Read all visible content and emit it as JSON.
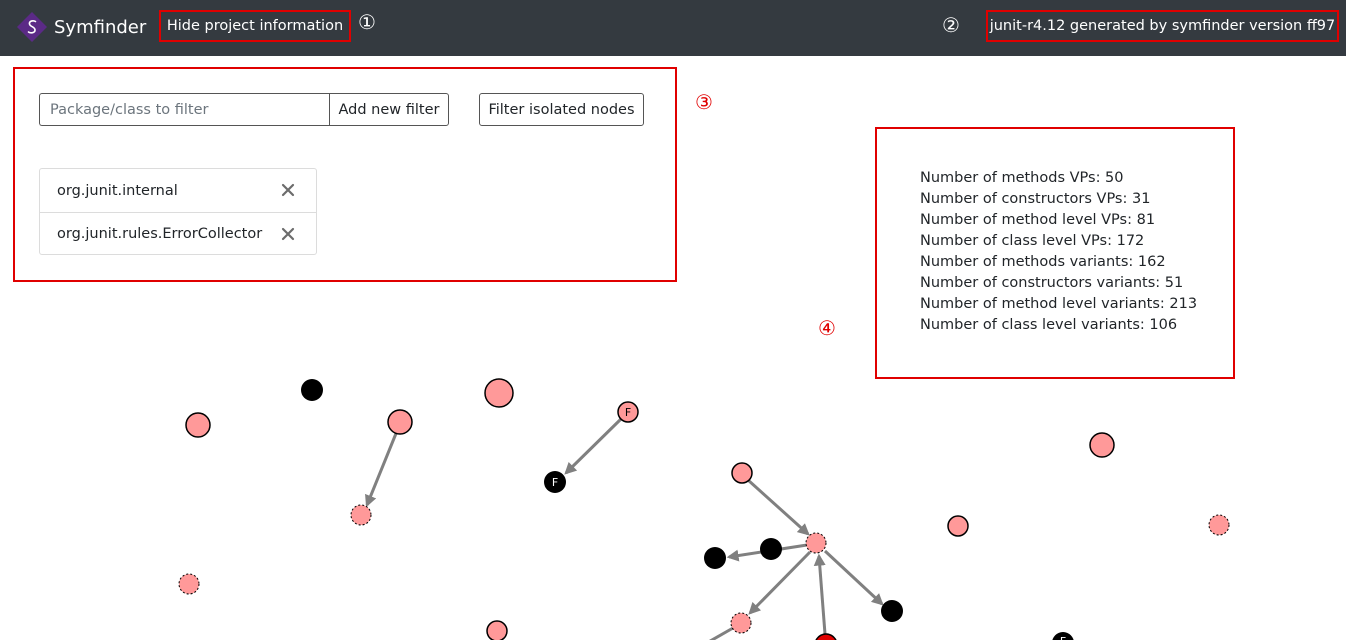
{
  "navbar": {
    "brand": "Symfinder",
    "brand_logo": "symfinder-logo",
    "toggle_label": "Hide project information",
    "generated_info": "junit-r4.12 generated by symfinder version ff97",
    "colors": {
      "background": "#343a40",
      "logo": "#5b2a86"
    }
  },
  "annotations": [
    "①",
    "②",
    "③",
    "④"
  ],
  "filter": {
    "placeholder": "Package/class to filter",
    "value": "",
    "add_button": "Add new filter",
    "isolated_button": "Filter isolated nodes",
    "items": [
      {
        "label": "org.junit.internal",
        "remove_icon": "close-icon"
      },
      {
        "label": "org.junit.rules.ErrorCollector",
        "remove_icon": "close-icon"
      }
    ]
  },
  "stats": [
    "Number of methods VPs: 50",
    "Number of constructors VPs: 31",
    "Number of method level VPs: 81",
    "Number of class level VPs: 172",
    "Number of methods variants: 162",
    "Number of constructors variants: 51",
    "Number of method level variants: 213",
    "Number of class level variants: 106"
  ],
  "graph": {
    "colors": {
      "vp": "#ff9999",
      "black": "#000000",
      "strong": "#e00000",
      "edge": "#808080"
    },
    "node_label": "F"
  }
}
